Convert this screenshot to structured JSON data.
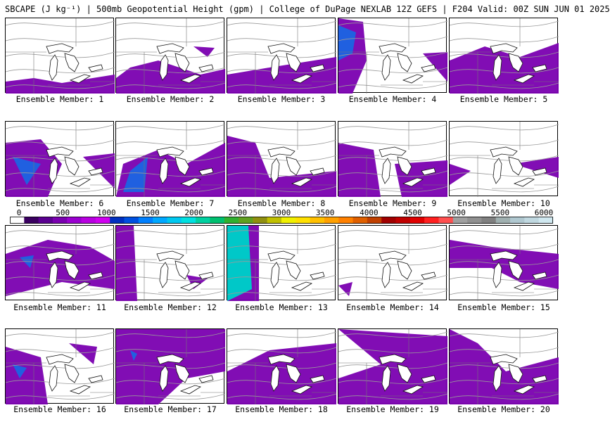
{
  "title": "SBCAPE (J kg⁻¹) | 500mb Geopotential Height (gpm) | College of DuPage NEXLAB 12Z GEFS | F204 Valid: 00Z SUN JUN 01 2025",
  "colorbar": {
    "labels": [
      "0",
      "500",
      "1000",
      "1500",
      "2000",
      "2500",
      "3000",
      "3500",
      "4000",
      "4500",
      "5000",
      "5500",
      "6000"
    ],
    "colors": [
      "#ffffff",
      "#3a0060",
      "#5a0090",
      "#7a00b0",
      "#9a00d0",
      "#b800e0",
      "#d000f0",
      "#0030c0",
      "#0050e0",
      "#0080ff",
      "#00a8ff",
      "#00c8f0",
      "#00e0e0",
      "#00d0a0",
      "#00c070",
      "#30b030",
      "#60a020",
      "#909010",
      "#c0c000",
      "#f0f000",
      "#ffe000",
      "#ffc000",
      "#ffa000",
      "#ff8000",
      "#e06000",
      "#c04000",
      "#a00000",
      "#c00000",
      "#e00000",
      "#ff2020",
      "#ff5050",
      "#a0a0a0",
      "#909090",
      "#808080",
      "#a0b0b0",
      "#b0c8d0",
      "#c0d8e0",
      "#d0e8f0"
    ]
  },
  "members": [
    {
      "caption": "Ensemble Member: 1"
    },
    {
      "caption": "Ensemble Member: 2"
    },
    {
      "caption": "Ensemble Member: 3"
    },
    {
      "caption": "Ensemble Member: 4"
    },
    {
      "caption": "Ensemble Member: 5"
    },
    {
      "caption": "Ensemble Member: 6"
    },
    {
      "caption": "Ensemble Member: 7"
    },
    {
      "caption": "Ensemble Member: 8"
    },
    {
      "caption": "Ensemble Member: 9"
    },
    {
      "caption": "Ensemble Member: 10"
    },
    {
      "caption": "Ensemble Member: 11"
    },
    {
      "caption": "Ensemble Member: 12"
    },
    {
      "caption": "Ensemble Member: 13"
    },
    {
      "caption": "Ensemble Member: 14"
    },
    {
      "caption": "Ensemble Member: 15"
    },
    {
      "caption": "Ensemble Member: 16"
    },
    {
      "caption": "Ensemble Member: 17"
    },
    {
      "caption": "Ensemble Member: 18"
    },
    {
      "caption": "Ensemble Member: 19"
    },
    {
      "caption": "Ensemble Member: 20"
    }
  ]
}
